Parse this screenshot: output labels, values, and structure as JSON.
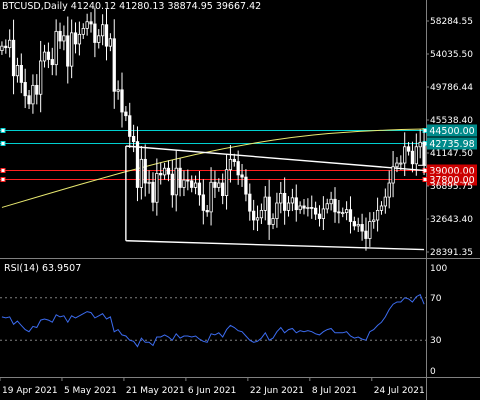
{
  "header": {
    "symbol": "BTCUSD,Daily",
    "ohlc": "41240.12 41280.13 38874.95 39667.42"
  },
  "rsi_header": {
    "label": "RSI(14) 63.9507"
  },
  "colors": {
    "background": "#000000",
    "bull_candle": "#ffffff",
    "bear_candle": "#ffffff",
    "resistance_line": "#00d0d0",
    "resistance_label_bg": "#008b8b",
    "support_line": "#ff2020",
    "support_label_bg": "#cc0000",
    "trendline": "#ffffff",
    "moving_average": "#e8e870",
    "rsi_line": "#3c6cf0",
    "rsi_levels": "#808080",
    "text": "#ffffff"
  },
  "chart_data": [
    {
      "type": "candlestick",
      "title": "BTCUSD,Daily",
      "ylim": [
        27300,
        61500
      ],
      "y_ticks": [
        "58284.55",
        "54035.50",
        "49786.44",
        "45538.40",
        "41147.50",
        "36895.75",
        "32643.40",
        "28391.35"
      ],
      "x_ticks": [
        "19 Apr 2021",
        "5 May 2021",
        "21 May 2021",
        "6 Jun 2021",
        "22 Jun 2021",
        "8 Jul 2021",
        "24 Jul 2021"
      ],
      "x_tick_positions": [
        0,
        16,
        32,
        48,
        64,
        80,
        96
      ],
      "close": [
        55800,
        55600,
        56600,
        51800,
        53200,
        50900,
        49100,
        48000,
        50500,
        49300,
        53800,
        55000,
        54000,
        53300,
        57800,
        56500,
        57200,
        53100,
        57600,
        56100,
        57400,
        58200,
        59100,
        58800,
        56300,
        57200,
        58700,
        55800,
        56800,
        49700,
        49900,
        46900,
        46400,
        43600,
        42900,
        36700,
        40500,
        37300,
        37400,
        34700,
        38600,
        38400,
        39300,
        38500,
        35700,
        39300,
        36700,
        37700,
        37600,
        36700,
        37300,
        35700,
        33600,
        33400,
        37400,
        36700,
        37300,
        35600,
        39100,
        40500,
        40200,
        38400,
        38100,
        35800,
        33500,
        32300,
        32600,
        33600,
        35400,
        31700,
        32500,
        34600,
        35900,
        33600,
        34600,
        35300,
        33700,
        34200,
        33900,
        34000,
        33900,
        33100,
        32500,
        33800,
        34500,
        35100,
        33400,
        33300,
        33300,
        33700,
        32100,
        31500,
        31700,
        30800,
        29800,
        32100,
        32300,
        33600,
        34200,
        35400,
        37300,
        39500,
        40000,
        40000,
        42200,
        41600,
        39900,
        42200,
        42800,
        39700
      ],
      "series": [
        {
          "name": "RSI(14)",
          "ylim": [
            0,
            100
          ],
          "levels": [
            70,
            30
          ],
          "y_ticks": [
            "100",
            "70",
            "30",
            "0"
          ],
          "values": [
            52,
            51,
            52,
            45,
            48,
            44,
            40,
            38,
            43,
            42,
            49,
            50,
            49,
            47,
            54,
            52,
            53,
            47,
            53,
            51,
            53,
            55,
            57,
            56,
            51,
            53,
            55,
            50,
            52,
            38,
            40,
            35,
            34,
            30,
            29,
            24,
            32,
            28,
            28,
            25,
            33,
            33,
            35,
            33,
            30,
            36,
            32,
            34,
            34,
            33,
            34,
            31,
            29,
            28,
            36,
            35,
            37,
            33,
            40,
            44,
            42,
            39,
            38,
            34,
            30,
            28,
            29,
            32,
            37,
            30,
            32,
            38,
            42,
            37,
            40,
            41,
            37,
            39,
            38,
            39,
            38,
            36,
            35,
            38,
            40,
            41,
            37,
            37,
            37,
            38,
            34,
            32,
            33,
            31,
            30,
            38,
            40,
            44,
            47,
            52,
            59,
            64,
            66,
            66,
            70,
            69,
            66,
            71,
            73,
            64
          ]
        }
      ],
      "horizontal_levels": [
        {
          "label": "44500.00",
          "value": 44500,
          "kind": "resistance"
        },
        {
          "label": "42735.98",
          "value": 42736,
          "kind": "resistance"
        },
        {
          "label": "39000.00",
          "value": 39000,
          "kind": "support"
        },
        {
          "label": "37800.00",
          "value": 37800,
          "kind": "support"
        }
      ],
      "trendline_channel": {
        "upper": [
          {
            "index": 32,
            "value": 42300
          },
          {
            "index": 109,
            "value": 39000
          }
        ],
        "lower": [
          {
            "index": 32,
            "value": 29500
          },
          {
            "index": 109,
            "value": 28300
          }
        ],
        "left_edge": {
          "index": 32,
          "from": 42300,
          "to": 29500
        }
      },
      "moving_average": [
        {
          "index": 0,
          "value": 34000
        },
        {
          "index": 20,
          "value": 37100
        },
        {
          "index": 40,
          "value": 40000
        },
        {
          "index": 60,
          "value": 42300
        },
        {
          "index": 80,
          "value": 43900
        },
        {
          "index": 100,
          "value": 44500
        },
        {
          "index": 109,
          "value": 44600
        }
      ]
    }
  ]
}
